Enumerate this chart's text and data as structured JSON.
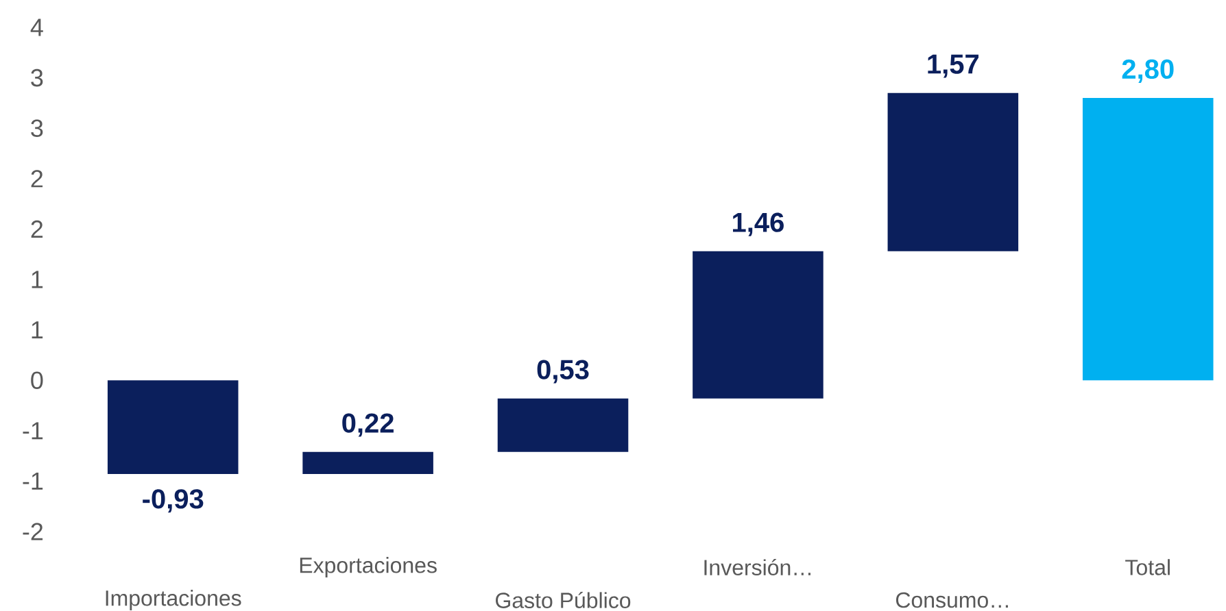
{
  "chart_data": {
    "type": "bar",
    "categories": [
      "Importaciones",
      "Exportaciones",
      "Gasto Público",
      "Inversión…",
      "Consumo…",
      "Total"
    ],
    "base": [
      0,
      -0.93,
      -0.71,
      -0.18,
      1.28,
      0
    ],
    "values": [
      -0.93,
      0.22,
      0.53,
      1.46,
      1.57,
      2.8
    ],
    "colors": [
      "#0b1f5c",
      "#0b1f5c",
      "#0b1f5c",
      "#0b1f5c",
      "#0b1f5c",
      "#00b0f0"
    ],
    "value_labels": [
      "-0,93",
      "0,22",
      "0,53",
      "1,46",
      "1,57",
      "2,80"
    ],
    "ylim": [
      -1.5,
      3.5
    ],
    "yticks": [
      {
        "value": 3.5,
        "label": "4"
      },
      {
        "value": 3,
        "label": "3"
      },
      {
        "value": 2.5,
        "label": "3"
      },
      {
        "value": 2,
        "label": "2"
      },
      {
        "value": 1.5,
        "label": "2"
      },
      {
        "value": 1,
        "label": "1"
      },
      {
        "value": 0.5,
        "label": "1"
      },
      {
        "value": 0,
        "label": "0"
      },
      {
        "value": -0.5,
        "label": "-1"
      },
      {
        "value": -1,
        "label": "-1"
      },
      {
        "value": -1.5,
        "label": "-2"
      }
    ]
  }
}
